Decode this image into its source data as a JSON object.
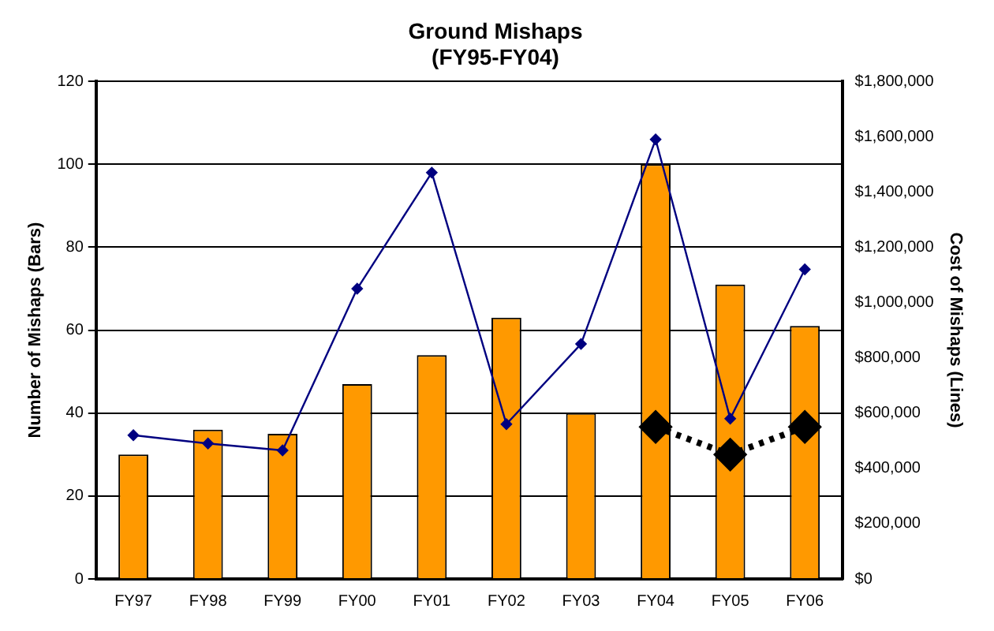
{
  "chart_data": {
    "type": "bar",
    "title": "Ground Mishaps",
    "subtitle": "(FY95-FY04)",
    "ylabel": "Number of Mishaps (Bars)",
    "y2label": "Cost of Mishaps (Lines)",
    "categories": [
      "FY97",
      "FY98",
      "FY99",
      "FY00",
      "FY01",
      "FY02",
      "FY03",
      "FY04",
      "FY05",
      "FY06"
    ],
    "series": [
      {
        "color": "#ff9900",
        "values": [
          30,
          36,
          35,
          47,
          54,
          63,
          40,
          100,
          71,
          61
        ]
      },
      {
        "type": "line",
        "axis": "y2",
        "color": "#000080",
        "marker": "diamond",
        "line_style": "solid",
        "values": [
          520000,
          490000,
          465000,
          1050000,
          1470000,
          560000,
          850000,
          1590000,
          580000,
          1120000
        ]
      },
      {
        "type": "line",
        "axis": "y2",
        "color": "#000000",
        "marker": "diamond",
        "line_style": "dotted",
        "values": [
          null,
          null,
          null,
          null,
          null,
          null,
          null,
          550000,
          450000,
          550000
        ]
      }
    ],
    "ylim": [
      0,
      120
    ],
    "yticks": [
      0,
      20,
      40,
      60,
      80,
      100,
      120
    ],
    "y2lim": [
      0,
      1800000
    ],
    "y2ticks": [
      {
        "value": 0,
        "label": "$0"
      },
      {
        "value": 200000,
        "label": "$200,000"
      },
      {
        "value": 400000,
        "label": "$400,000"
      },
      {
        "value": 600000,
        "label": "$600,000"
      },
      {
        "value": 800000,
        "label": "$800,000"
      },
      {
        "value": 1000000,
        "label": "$1,000,000"
      },
      {
        "value": 1200000,
        "label": "$1,200,000"
      },
      {
        "value": 1400000,
        "label": "$1,400,000"
      },
      {
        "value": 1600000,
        "label": "$1,600,000"
      },
      {
        "value": 1800000,
        "label": "$1,800,000"
      }
    ],
    "grid": "y",
    "legend": false
  }
}
